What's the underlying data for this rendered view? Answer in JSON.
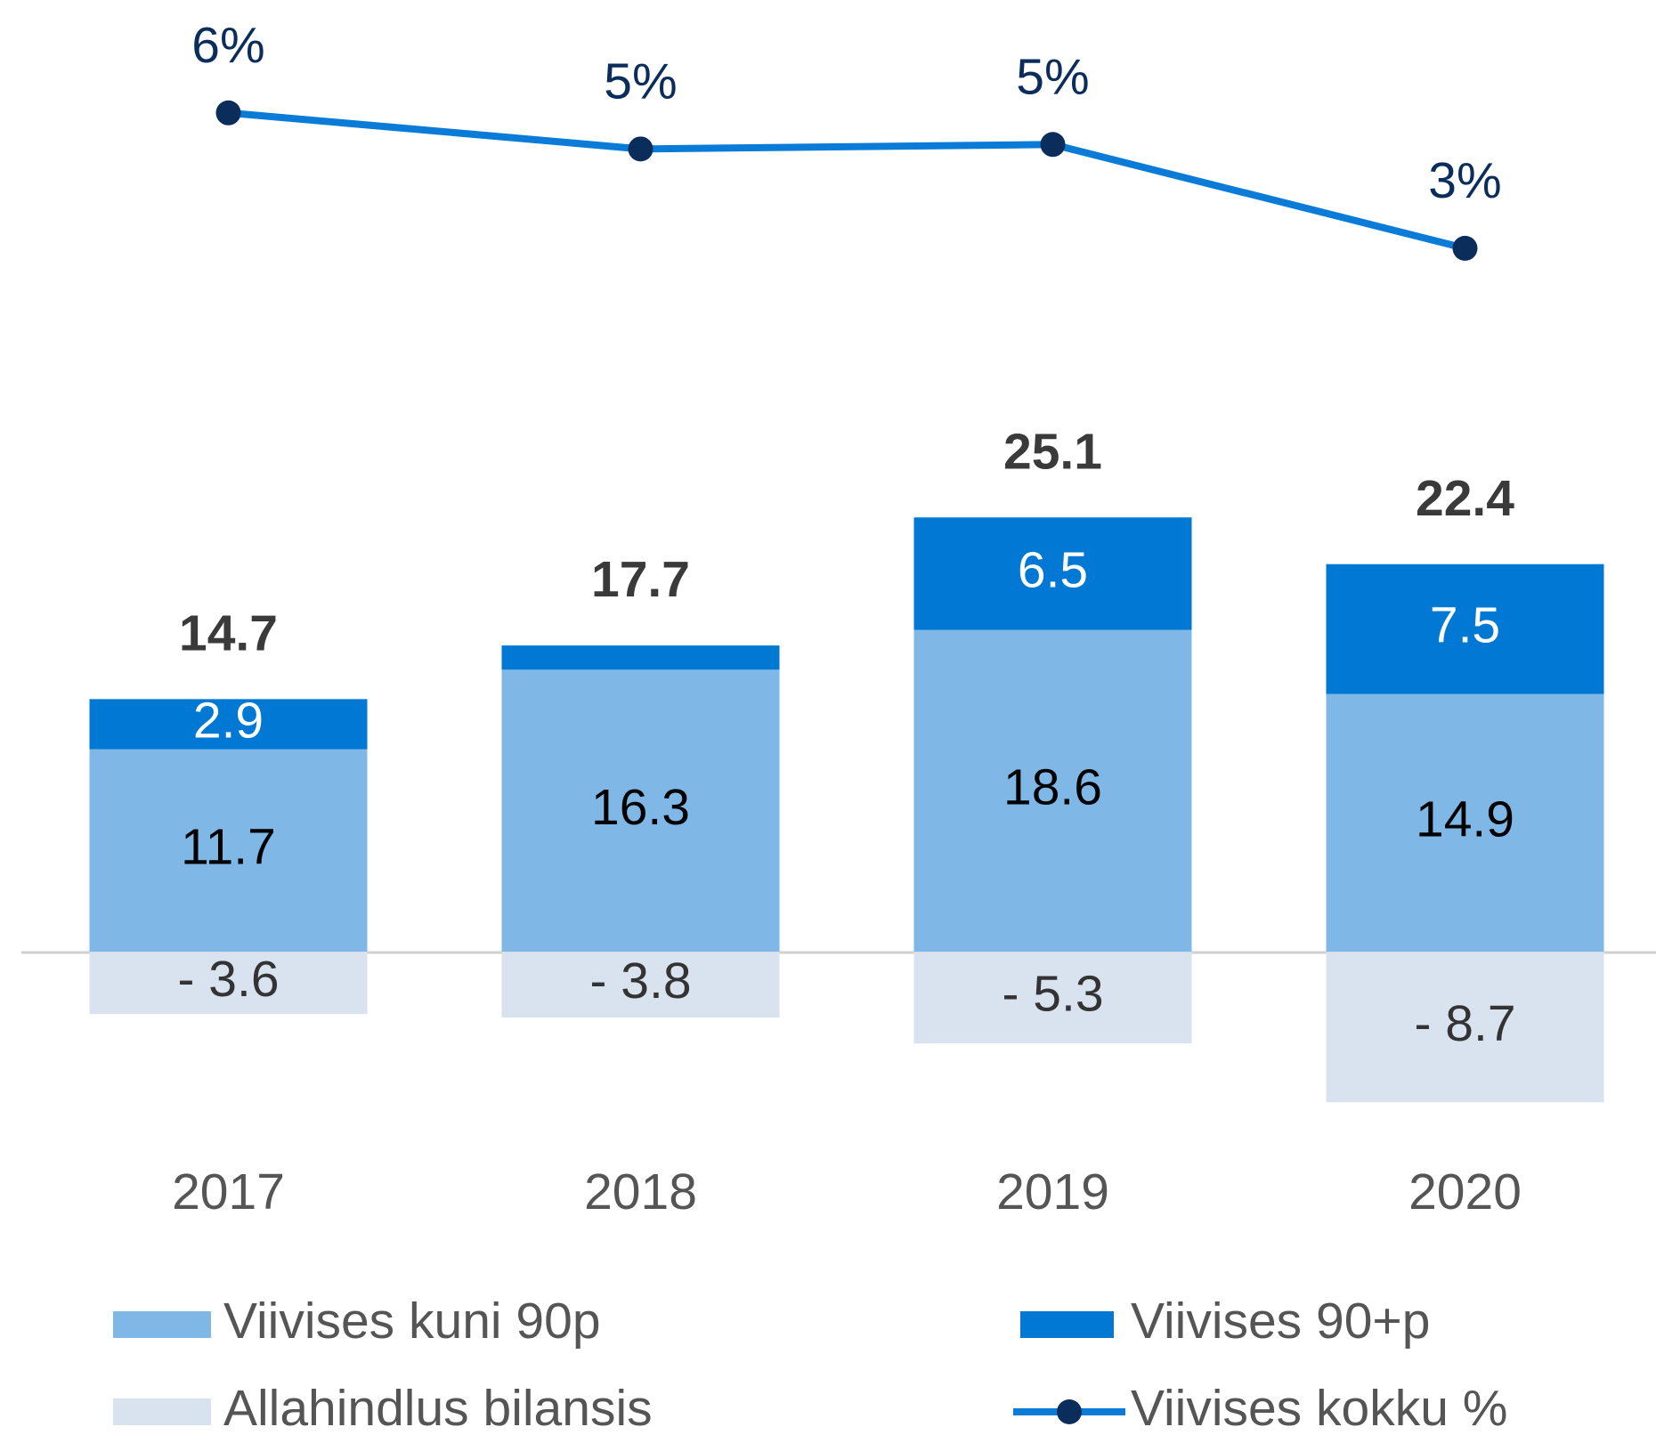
{
  "chart_data": {
    "type": "bar",
    "categories": [
      "2017",
      "2018",
      "2019",
      "2020"
    ],
    "ylim": [
      -11,
      55
    ],
    "y2lim": [
      -17,
      8.3
    ],
    "series": [
      {
        "name": "Viivises kuni 90p",
        "color": "#7fb8e6",
        "values": [
          11.7,
          16.3,
          18.6,
          14.9
        ]
      },
      {
        "name": "Viivises 90+p",
        "color": "#0078d4",
        "values": [
          2.9,
          1.4,
          6.5,
          7.5
        ],
        "value_labels": [
          "2.9",
          null,
          "6.5",
          "7.5"
        ]
      },
      {
        "name": "Allahindlus bilansis",
        "color": "#d9e2ef",
        "values": [
          -3.6,
          -3.8,
          -5.3,
          -8.7
        ],
        "value_labels": [
          "- 3.6",
          "- 3.8",
          "- 5.3",
          "- 8.7"
        ]
      },
      {
        "name": "Viivises kokku %",
        "type": "line",
        "axis": "y2",
        "color": "#0a7bd6",
        "marker_color": "#0b2d5b",
        "values": [
          5.8,
          5.0,
          5.1,
          2.8
        ],
        "value_labels": [
          "6%",
          "5%",
          "5%",
          "3%"
        ]
      }
    ],
    "totals": [
      14.7,
      17.7,
      25.1,
      22.4
    ],
    "legend": "bottom"
  }
}
